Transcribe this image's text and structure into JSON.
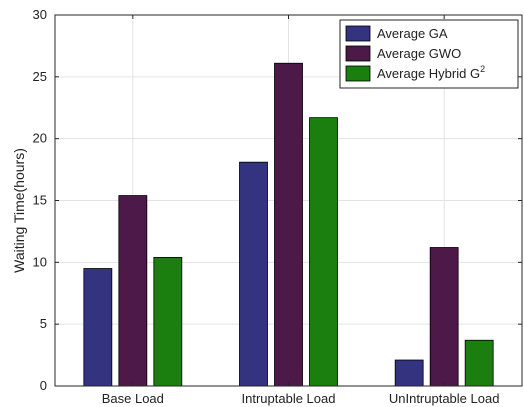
{
  "chart_data": {
    "type": "bar",
    "title": "",
    "xlabel": "",
    "ylabel": "Waiting Time(hours)",
    "ylim": [
      0,
      30
    ],
    "yticks": [
      0,
      5,
      10,
      15,
      20,
      25,
      30
    ],
    "grid": true,
    "legend_position": "top-right",
    "categories": [
      "Base Load",
      "Intruptable Load",
      "UnIntruptable Load"
    ],
    "series": [
      {
        "name": "Average GA",
        "color": "#33337f",
        "values": [
          9.5,
          18.1,
          2.1
        ]
      },
      {
        "name": "Average GWO",
        "color": "#4d1948",
        "values": [
          15.4,
          26.1,
          11.2
        ]
      },
      {
        "name": "Average Hybrid G",
        "name_superscript": "2",
        "color": "#1b7f0f",
        "values": [
          10.4,
          21.7,
          3.7
        ]
      }
    ]
  }
}
